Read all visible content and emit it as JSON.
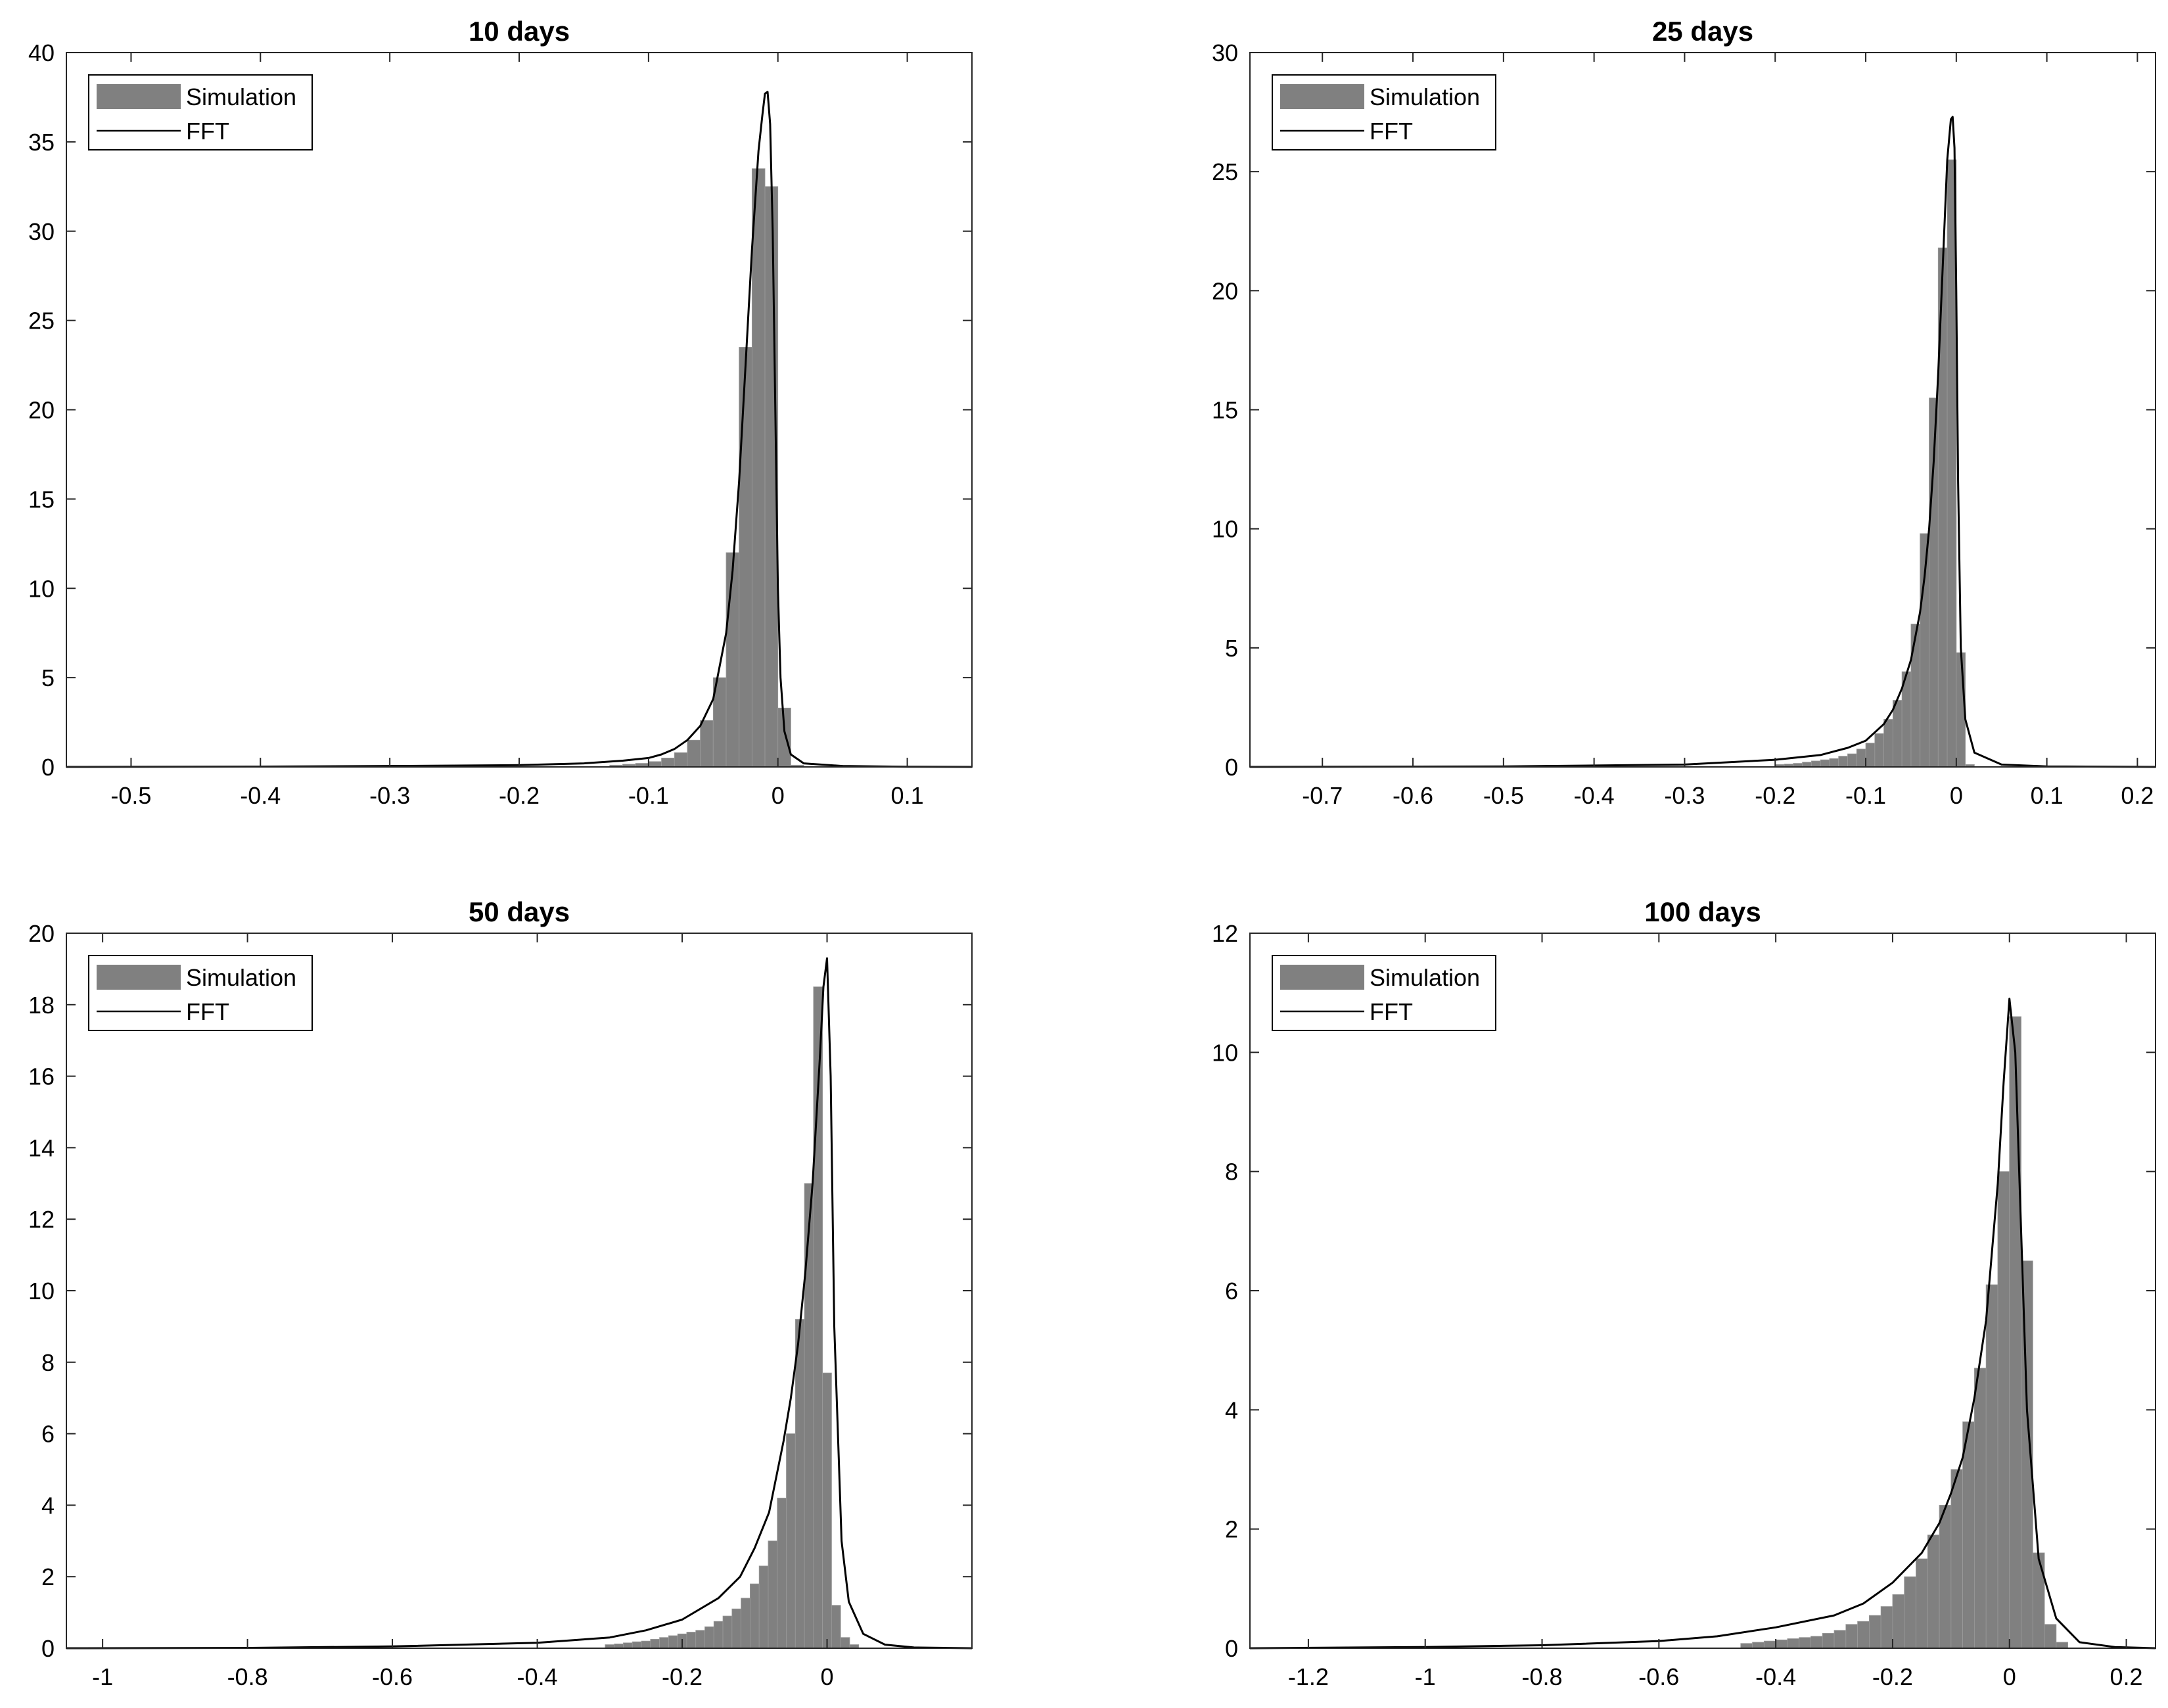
{
  "chart_data": [
    {
      "type": "bar",
      "title": "10 days",
      "xlabel": "",
      "ylabel": "",
      "xlim": [
        -0.55,
        0.15
      ],
      "ylim": [
        0,
        40
      ],
      "xticks": [
        -0.5,
        -0.4,
        -0.3,
        -0.2,
        -0.1,
        0,
        0.1
      ],
      "xtick_labels": [
        "-0.5",
        "-0.4",
        "-0.3",
        "-0.2",
        "-0.1",
        "0",
        "0.1"
      ],
      "yticks": [
        0,
        5,
        10,
        15,
        20,
        25,
        30,
        35,
        40
      ],
      "ytick_labels": [
        "0",
        "5",
        "10",
        "15",
        "20",
        "25",
        "30",
        "35",
        "40"
      ],
      "grid": false,
      "legend": {
        "position": "top-left",
        "entries": [
          "Simulation",
          "FFT"
        ]
      },
      "series": [
        {
          "name": "Simulation",
          "kind": "histogram",
          "bin_width": 0.01,
          "color": "#808080",
          "bin_centers": [
            -0.125,
            -0.115,
            -0.105,
            -0.095,
            -0.085,
            -0.075,
            -0.065,
            -0.055,
            -0.045,
            -0.035,
            -0.025,
            -0.015,
            -0.005,
            0.005,
            0.015
          ],
          "values": [
            0.1,
            0.15,
            0.2,
            0.3,
            0.5,
            0.8,
            1.5,
            2.6,
            5.0,
            12.0,
            23.5,
            33.5,
            32.5,
            3.3,
            0.1
          ]
        },
        {
          "name": "FFT",
          "kind": "line",
          "color": "#000000",
          "x": [
            -0.55,
            -0.4,
            -0.3,
            -0.2,
            -0.15,
            -0.12,
            -0.1,
            -0.09,
            -0.08,
            -0.07,
            -0.06,
            -0.05,
            -0.04,
            -0.035,
            -0.03,
            -0.025,
            -0.02,
            -0.015,
            -0.012,
            -0.01,
            -0.008,
            -0.006,
            -0.004,
            -0.002,
            0,
            0.002,
            0.005,
            0.01,
            0.02,
            0.05,
            0.1,
            0.15
          ],
          "y": [
            0,
            0.02,
            0.05,
            0.1,
            0.2,
            0.35,
            0.5,
            0.7,
            1.0,
            1.5,
            2.3,
            3.8,
            7.5,
            11.0,
            16.0,
            22.5,
            29.0,
            34.5,
            36.5,
            37.7,
            37.8,
            36.0,
            30.0,
            20.0,
            10.0,
            5.0,
            2.0,
            0.7,
            0.2,
            0.05,
            0.01,
            0
          ]
        }
      ]
    },
    {
      "type": "bar",
      "title": "25 days",
      "xlabel": "",
      "ylabel": "",
      "xlim": [
        -0.78,
        0.22
      ],
      "ylim": [
        0,
        30
      ],
      "xticks": [
        -0.7,
        -0.6,
        -0.5,
        -0.4,
        -0.3,
        -0.2,
        -0.1,
        0,
        0.1,
        0.2
      ],
      "xtick_labels": [
        "-0.7",
        "-0.6",
        "-0.5",
        "-0.4",
        "-0.3",
        "-0.2",
        "-0.1",
        "0",
        "0.1",
        "0.2"
      ],
      "yticks": [
        0,
        5,
        10,
        15,
        20,
        25,
        30
      ],
      "ytick_labels": [
        "0",
        "5",
        "10",
        "15",
        "20",
        "25",
        "30"
      ],
      "grid": false,
      "legend": {
        "position": "top-left",
        "entries": [
          "Simulation",
          "FFT"
        ]
      },
      "series": [
        {
          "name": "Simulation",
          "kind": "histogram",
          "bin_width": 0.01,
          "color": "#808080",
          "bin_centers": [
            -0.195,
            -0.185,
            -0.175,
            -0.165,
            -0.155,
            -0.145,
            -0.135,
            -0.125,
            -0.115,
            -0.105,
            -0.095,
            -0.085,
            -0.075,
            -0.065,
            -0.055,
            -0.045,
            -0.035,
            -0.025,
            -0.015,
            -0.005,
            0.005,
            0.015
          ],
          "values": [
            0.1,
            0.12,
            0.15,
            0.2,
            0.25,
            0.3,
            0.35,
            0.45,
            0.55,
            0.75,
            1.0,
            1.4,
            2.0,
            2.8,
            4.0,
            6.0,
            9.8,
            15.5,
            21.8,
            25.5,
            4.8,
            0.1
          ]
        },
        {
          "name": "FFT",
          "kind": "line",
          "color": "#000000",
          "x": [
            -0.78,
            -0.5,
            -0.3,
            -0.2,
            -0.15,
            -0.12,
            -0.1,
            -0.08,
            -0.07,
            -0.06,
            -0.05,
            -0.04,
            -0.035,
            -0.03,
            -0.025,
            -0.02,
            -0.015,
            -0.01,
            -0.006,
            -0.004,
            -0.002,
            0,
            0.002,
            0.005,
            0.01,
            0.02,
            0.05,
            0.1,
            0.22
          ],
          "y": [
            0,
            0.02,
            0.1,
            0.3,
            0.5,
            0.8,
            1.1,
            1.8,
            2.4,
            3.3,
            4.5,
            6.5,
            8.0,
            10.0,
            12.8,
            16.5,
            21.0,
            25.5,
            27.2,
            27.3,
            26.0,
            20.0,
            12.0,
            5.0,
            2.0,
            0.6,
            0.1,
            0.02,
            0
          ]
        }
      ]
    },
    {
      "type": "bar",
      "title": "50 days",
      "xlabel": "",
      "ylabel": "",
      "xlim": [
        -1.05,
        0.2
      ],
      "ylim": [
        0,
        20
      ],
      "xticks": [
        -1,
        -0.8,
        -0.6,
        -0.4,
        -0.2,
        0
      ],
      "xtick_labels": [
        "-1",
        "-0.8",
        "-0.6",
        "-0.4",
        "-0.2",
        "0"
      ],
      "yticks": [
        0,
        2,
        4,
        6,
        8,
        10,
        12,
        14,
        16,
        18,
        20
      ],
      "ytick_labels": [
        "0",
        "2",
        "4",
        "6",
        "8",
        "10",
        "12",
        "14",
        "16",
        "18",
        "20"
      ],
      "grid": false,
      "legend": {
        "position": "top-left",
        "entries": [
          "Simulation",
          "FFT"
        ]
      },
      "series": [
        {
          "name": "Simulation",
          "kind": "histogram",
          "bin_width": 0.0125,
          "color": "#808080",
          "bin_centers": [
            -0.3,
            -0.2875,
            -0.275,
            -0.2625,
            -0.25,
            -0.2375,
            -0.225,
            -0.2125,
            -0.2,
            -0.1875,
            -0.175,
            -0.1625,
            -0.15,
            -0.1375,
            -0.125,
            -0.1125,
            -0.1,
            -0.0875,
            -0.075,
            -0.0625,
            -0.05,
            -0.0375,
            -0.025,
            -0.0125,
            0,
            0.0125,
            0.025,
            0.0375
          ],
          "values": [
            0.1,
            0.12,
            0.15,
            0.18,
            0.2,
            0.25,
            0.3,
            0.35,
            0.4,
            0.45,
            0.5,
            0.6,
            0.75,
            0.9,
            1.1,
            1.4,
            1.8,
            2.3,
            3.0,
            4.2,
            6.0,
            9.2,
            13.0,
            18.5,
            7.7,
            1.2,
            0.3,
            0.1
          ]
        },
        {
          "name": "FFT",
          "kind": "line",
          "color": "#000000",
          "x": [
            -1.05,
            -0.8,
            -0.6,
            -0.4,
            -0.3,
            -0.25,
            -0.2,
            -0.15,
            -0.12,
            -0.1,
            -0.08,
            -0.06,
            -0.05,
            -0.04,
            -0.03,
            -0.02,
            -0.01,
            -0.005,
            0,
            0.005,
            0.01,
            0.02,
            0.03,
            0.05,
            0.08,
            0.12,
            0.2
          ],
          "y": [
            0,
            0.01,
            0.05,
            0.15,
            0.3,
            0.5,
            0.8,
            1.4,
            2.0,
            2.8,
            3.8,
            5.8,
            7.0,
            8.5,
            10.5,
            13.0,
            16.5,
            18.5,
            19.3,
            16.0,
            9.0,
            3.0,
            1.3,
            0.4,
            0.1,
            0.02,
            0
          ]
        }
      ]
    },
    {
      "type": "bar",
      "title": "100 days",
      "xlabel": "",
      "ylabel": "",
      "xlim": [
        -1.3,
        0.25
      ],
      "ylim": [
        0,
        12
      ],
      "xticks": [
        -1.2,
        -1,
        -0.8,
        -0.6,
        -0.4,
        -0.2,
        0,
        0.2
      ],
      "xtick_labels": [
        "-1.2",
        "-1",
        "-0.8",
        "-0.6",
        "-0.4",
        "-0.2",
        "0",
        "0.2"
      ],
      "yticks": [
        0,
        2,
        4,
        6,
        8,
        10,
        12
      ],
      "ytick_labels": [
        "0",
        "2",
        "4",
        "6",
        "8",
        "10",
        "12"
      ],
      "grid": false,
      "legend": {
        "position": "top-left",
        "entries": [
          "Simulation",
          "FFT"
        ]
      },
      "series": [
        {
          "name": "Simulation",
          "kind": "histogram",
          "bin_width": 0.02,
          "color": "#808080",
          "bin_centers": [
            -0.45,
            -0.43,
            -0.41,
            -0.39,
            -0.37,
            -0.35,
            -0.33,
            -0.31,
            -0.29,
            -0.27,
            -0.25,
            -0.23,
            -0.21,
            -0.19,
            -0.17,
            -0.15,
            -0.13,
            -0.11,
            -0.09,
            -0.07,
            -0.05,
            -0.03,
            -0.01,
            0.01,
            0.03,
            0.05,
            0.07,
            0.09
          ],
          "values": [
            0.08,
            0.1,
            0.12,
            0.14,
            0.16,
            0.18,
            0.2,
            0.25,
            0.3,
            0.4,
            0.45,
            0.55,
            0.7,
            0.9,
            1.2,
            1.5,
            1.9,
            2.4,
            3.0,
            3.8,
            4.7,
            6.1,
            8.0,
            10.6,
            6.5,
            1.6,
            0.4,
            0.1
          ]
        },
        {
          "name": "FFT",
          "kind": "line",
          "color": "#000000",
          "x": [
            -1.3,
            -1,
            -0.8,
            -0.6,
            -0.5,
            -0.4,
            -0.3,
            -0.25,
            -0.2,
            -0.15,
            -0.12,
            -0.1,
            -0.08,
            -0.06,
            -0.04,
            -0.02,
            -0.01,
            0,
            0.01,
            0.02,
            0.03,
            0.05,
            0.08,
            0.12,
            0.18,
            0.25
          ],
          "y": [
            0,
            0.02,
            0.05,
            0.12,
            0.2,
            0.35,
            0.55,
            0.75,
            1.1,
            1.6,
            2.1,
            2.6,
            3.2,
            4.2,
            5.5,
            7.8,
            9.5,
            10.9,
            10.0,
            7.0,
            4.0,
            1.5,
            0.5,
            0.1,
            0.02,
            0
          ]
        }
      ]
    }
  ]
}
